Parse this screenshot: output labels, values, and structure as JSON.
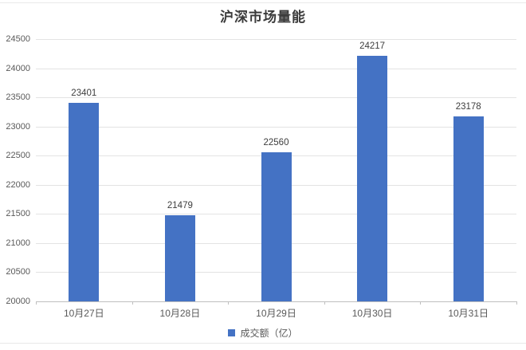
{
  "title": "沪深市场量能",
  "legend": {
    "label": "成交额（亿）"
  },
  "chart_data": {
    "type": "bar",
    "title": "沪深市场量能",
    "categories": [
      "10月27日",
      "10月28日",
      "10月29日",
      "10月30日",
      "10月31日"
    ],
    "values": [
      23401,
      21479,
      22560,
      24217,
      23178
    ],
    "series_name": "成交额（亿）",
    "xlabel": "",
    "ylabel": "",
    "ylim": [
      20000,
      24500
    ],
    "ytick_step": 500,
    "yticks": [
      20000,
      20500,
      21000,
      21500,
      22000,
      22500,
      23000,
      23500,
      24000,
      24500
    ],
    "grid": true,
    "data_labels": true,
    "legend_position": "bottom"
  },
  "colors": {
    "bar": "#4472C4",
    "gridline": "#e3e3e3",
    "axis_line": "#bfbfbf",
    "tick_label": "#595959",
    "data_label": "#3d3d3d",
    "title": "#3b3b3b",
    "divider": "#e9e9e9"
  }
}
